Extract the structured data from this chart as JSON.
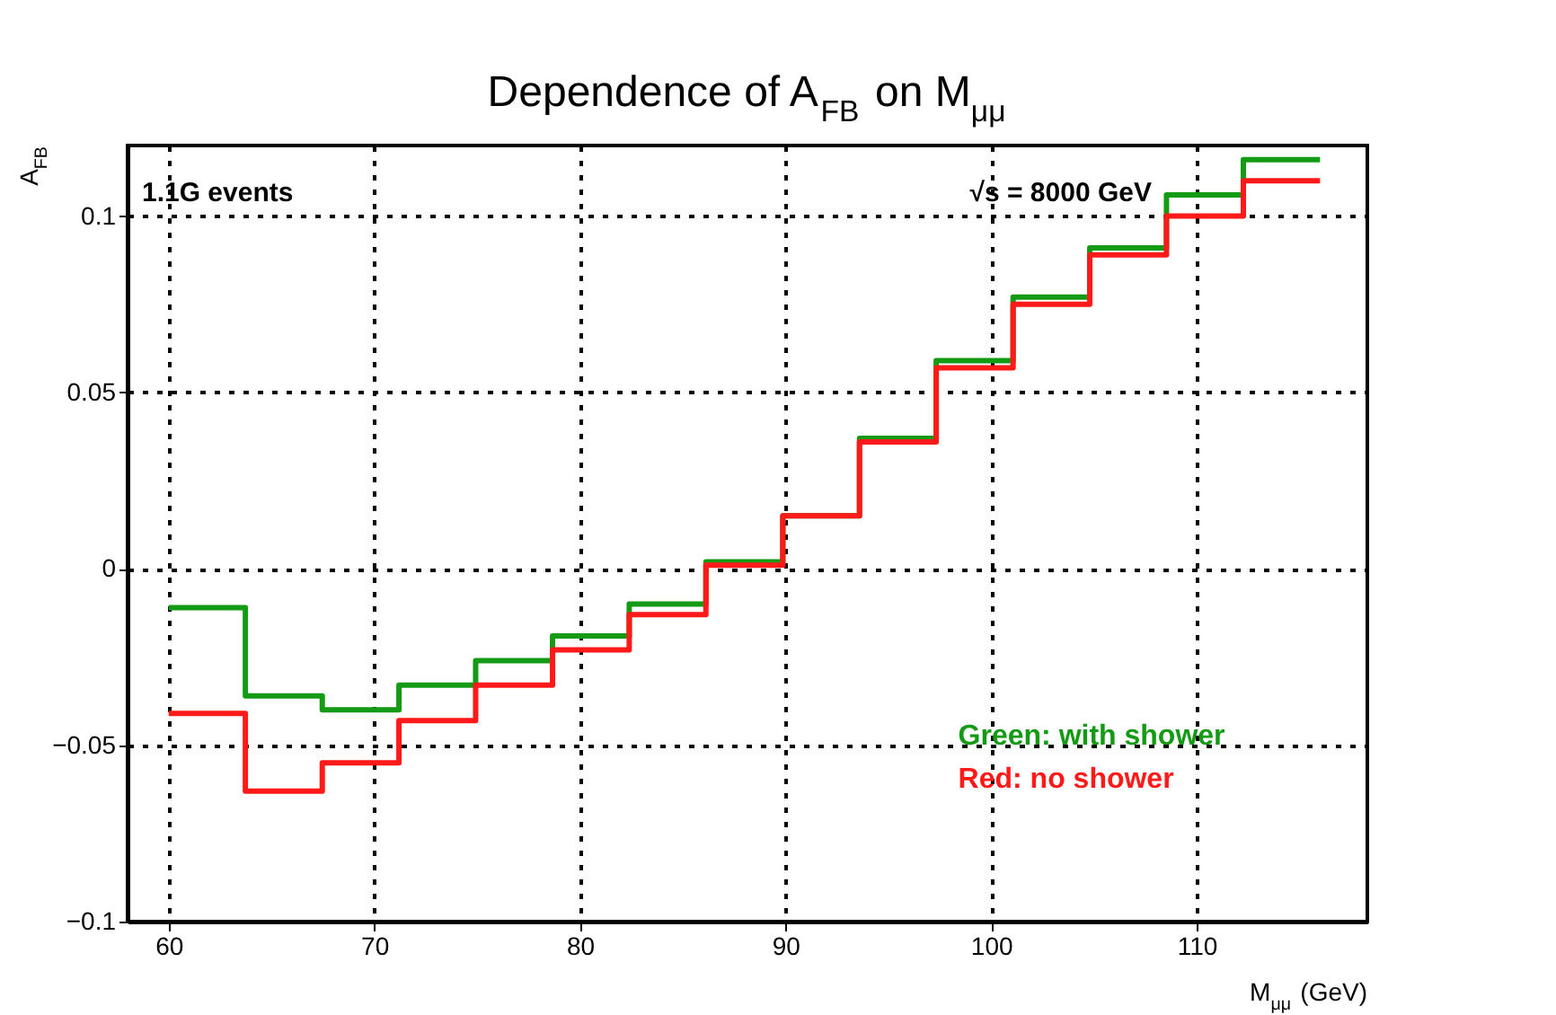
{
  "chart_data": {
    "type": "histogram",
    "title": "Dependence of A$_{FB}$ on M$_{μμ}$",
    "xlabel": "M$_{μμ}$ (GeV)",
    "ylabel": "A$_{FB}$",
    "bins": [
      60,
      63.73,
      67.47,
      71.2,
      74.93,
      78.67,
      82.4,
      86.13,
      89.87,
      93.6,
      97.33,
      101.07,
      104.8,
      108.53,
      112.27,
      116
    ],
    "series": [
      {
        "name": "Green: with shower",
        "color": "#159a15",
        "values": [
          -0.011,
          -0.036,
          -0.04,
          -0.033,
          -0.026,
          -0.019,
          -0.01,
          0.002,
          0.015,
          0.037,
          0.059,
          0.077,
          0.091,
          0.106,
          0.116
        ]
      },
      {
        "name": "Red: no shower",
        "color": "#ff1a1a",
        "values": [
          -0.041,
          -0.063,
          -0.055,
          -0.043,
          -0.033,
          -0.023,
          -0.013,
          0.001,
          0.015,
          0.036,
          0.057,
          0.075,
          0.089,
          0.1,
          0.11
        ]
      }
    ],
    "xlim": [
      58,
      118.3
    ],
    "ylim": [
      -0.1,
      0.12
    ],
    "xticks": [
      60,
      70,
      80,
      90,
      100,
      110
    ],
    "yticks": [
      {
        "value": -0.1,
        "label": "−0.1"
      },
      {
        "value": -0.05,
        "label": "−0.05"
      },
      0,
      0.05,
      0.1
    ],
    "grid": true,
    "legend": "bottom right",
    "line_style": "solid",
    "annotations": [
      "1.1G events",
      "√s = 8000 GeV"
    ]
  }
}
